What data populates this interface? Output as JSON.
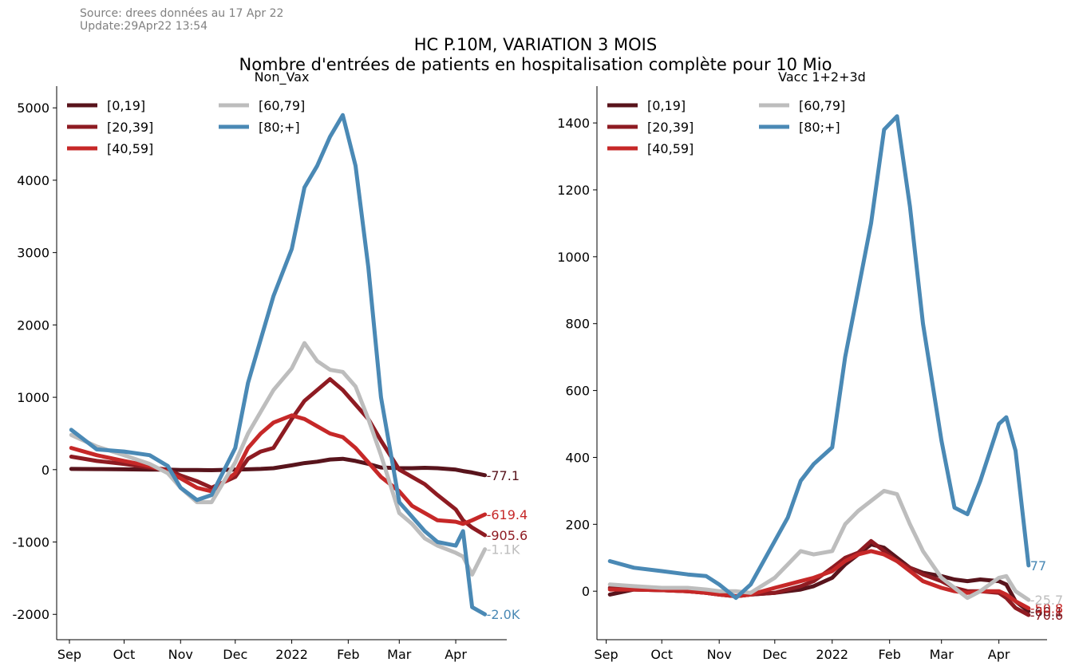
{
  "header": {
    "source": "Source: drees données au 17 Apr 22",
    "update": "Update:29Apr22 13:54",
    "title_line1": "HC P.10M, VARIATION 3 MOIS",
    "title_line2": "Nombre d'entrées de patients en hospitalisation complète pour 10 Mio"
  },
  "colors": {
    "[0,19]": "#58141c",
    "[20,39]": "#8e1b22",
    "[40,59]": "#c62828",
    "[60,79]": "#bdbdbd",
    "[80;+]": "#4a89b5"
  },
  "chart_data": [
    {
      "type": "line",
      "title": "Non_Vax",
      "x_dates": [
        "2021-09-02",
        "2021-09-16",
        "2021-10-01",
        "2021-10-15",
        "2021-10-25",
        "2021-11-01",
        "2021-11-10",
        "2021-11-18",
        "2021-12-01",
        "2021-12-08",
        "2021-12-15",
        "2021-12-22",
        "2022-01-01",
        "2022-01-08",
        "2022-01-15",
        "2022-01-22",
        "2022-01-29",
        "2022-02-05",
        "2022-02-12",
        "2022-02-19",
        "2022-03-01",
        "2022-03-08",
        "2022-03-15",
        "2022-03-22",
        "2022-04-01",
        "2022-04-05",
        "2022-04-10",
        "2022-04-17"
      ],
      "xticks": [
        "Sep",
        "Oct",
        "Nov",
        "Dec",
        "2022",
        "Feb",
        "Mar",
        "Apr"
      ],
      "xtick_dates": [
        "2021-09-01",
        "2021-10-01",
        "2021-11-01",
        "2021-12-01",
        "2022-01-01",
        "2022-02-01",
        "2022-03-01",
        "2022-04-01"
      ],
      "yticks": [
        -2000,
        -1000,
        0,
        1000,
        2000,
        3000,
        4000,
        5000
      ],
      "ytick_labels": [
        "-2000",
        "-1000",
        "0",
        "1000",
        "2000",
        "3000",
        "4000",
        "5000"
      ],
      "ylim": [
        -2350,
        5300
      ],
      "xlim": [
        "2021-08-25",
        "2022-04-29"
      ],
      "legend": {
        "position": "top-left",
        "columns": 2
      },
      "series": [
        {
          "name": "[0,19]",
          "end_label": "-77.1",
          "values": [
            10,
            8,
            5,
            0,
            0,
            -5,
            -5,
            -8,
            0,
            5,
            10,
            20,
            60,
            90,
            110,
            140,
            150,
            120,
            80,
            30,
            20,
            20,
            25,
            20,
            0,
            -20,
            -40,
            -77
          ]
        },
        {
          "name": "[20,39]",
          "end_label": "-905.6",
          "values": [
            180,
            120,
            80,
            30,
            0,
            -80,
            -160,
            -250,
            -100,
            150,
            250,
            300,
            700,
            950,
            1100,
            1250,
            1100,
            900,
            700,
            400,
            0,
            -100,
            -200,
            -350,
            -550,
            -700,
            -800,
            -906
          ]
        },
        {
          "name": "[40,59]",
          "end_label": "-619.4",
          "values": [
            300,
            200,
            120,
            50,
            -30,
            -120,
            -250,
            -300,
            -50,
            300,
            500,
            650,
            750,
            700,
            600,
            500,
            450,
            300,
            100,
            -100,
            -300,
            -500,
            -600,
            -700,
            -720,
            -750,
            -700,
            -619
          ]
        },
        {
          "name": "[60,79]",
          "end_label": "-1.1K",
          "values": [
            480,
            320,
            200,
            80,
            -50,
            -250,
            -450,
            -450,
            100,
            500,
            800,
            1100,
            1400,
            1750,
            1500,
            1380,
            1350,
            1150,
            700,
            200,
            -600,
            -750,
            -950,
            -1050,
            -1150,
            -1200,
            -1450,
            -1100
          ]
        },
        {
          "name": "[80;+]",
          "end_label": "-2.0K",
          "values": [
            550,
            280,
            250,
            200,
            50,
            -250,
            -420,
            -350,
            300,
            1200,
            1800,
            2400,
            3050,
            3900,
            4200,
            4600,
            4900,
            4200,
            2800,
            1000,
            -450,
            -650,
            -850,
            -1000,
            -1050,
            -850,
            -1900,
            -2000
          ]
        }
      ]
    },
    {
      "type": "line",
      "title": "Vacc 1+2+3d",
      "x_dates": [
        "2021-09-03",
        "2021-09-16",
        "2021-10-01",
        "2021-10-15",
        "2021-10-25",
        "2021-11-01",
        "2021-11-10",
        "2021-11-18",
        "2021-12-01",
        "2021-12-08",
        "2021-12-15",
        "2021-12-22",
        "2022-01-01",
        "2022-01-08",
        "2022-01-15",
        "2022-01-22",
        "2022-01-29",
        "2022-02-05",
        "2022-02-12",
        "2022-02-19",
        "2022-03-01",
        "2022-03-08",
        "2022-03-15",
        "2022-03-22",
        "2022-04-01",
        "2022-04-05",
        "2022-04-10",
        "2022-04-17"
      ],
      "xticks": [
        "Sep",
        "Oct",
        "Nov",
        "Dec",
        "2022",
        "Feb",
        "Mar",
        "Apr"
      ],
      "xtick_dates": [
        "2021-09-01",
        "2021-10-01",
        "2021-11-01",
        "2021-12-01",
        "2022-01-01",
        "2022-02-01",
        "2022-03-01",
        "2022-04-01"
      ],
      "yticks": [
        0,
        200,
        400,
        600,
        800,
        1000,
        1200,
        1400
      ],
      "ytick_labels": [
        "0",
        "200",
        "400",
        "600",
        "800",
        "1000",
        "1200",
        "1400"
      ],
      "ylim": [
        -145,
        1510
      ],
      "xlim": [
        "2021-08-27",
        "2022-04-27"
      ],
      "legend": {
        "position": "top-left",
        "columns": 2
      },
      "series": [
        {
          "name": "[0,19]",
          "end_label": "-60.1",
          "values": [
            -10,
            5,
            3,
            0,
            -5,
            -10,
            -15,
            -10,
            -5,
            0,
            5,
            15,
            40,
            80,
            110,
            140,
            130,
            100,
            70,
            55,
            45,
            35,
            30,
            35,
            30,
            20,
            -30,
            -60
          ]
        },
        {
          "name": "[20,39]",
          "end_label": "-70.6",
          "values": [
            10,
            5,
            3,
            0,
            -5,
            -10,
            -15,
            -10,
            -5,
            5,
            15,
            30,
            70,
            100,
            115,
            150,
            120,
            90,
            70,
            50,
            30,
            10,
            0,
            0,
            -5,
            -20,
            -50,
            -71
          ]
        },
        {
          "name": "[40,59]",
          "end_label": "-50.8",
          "values": [
            5,
            5,
            3,
            0,
            -5,
            -10,
            -15,
            -10,
            10,
            20,
            30,
            40,
            60,
            90,
            110,
            120,
            110,
            90,
            60,
            30,
            10,
            0,
            -5,
            0,
            0,
            -10,
            -30,
            -51
          ]
        },
        {
          "name": "[60,79]",
          "end_label": "-25.7",
          "values": [
            20,
            15,
            10,
            10,
            5,
            0,
            0,
            -5,
            40,
            80,
            120,
            110,
            120,
            200,
            240,
            270,
            300,
            290,
            200,
            120,
            40,
            10,
            -20,
            0,
            40,
            45,
            0,
            -26
          ]
        },
        {
          "name": "[80;+]",
          "end_label": "77",
          "values": [
            90,
            70,
            60,
            50,
            45,
            20,
            -20,
            20,
            150,
            220,
            330,
            380,
            430,
            700,
            900,
            1100,
            1380,
            1420,
            1150,
            800,
            450,
            250,
            230,
            330,
            500,
            520,
            420,
            77
          ]
        }
      ]
    }
  ]
}
